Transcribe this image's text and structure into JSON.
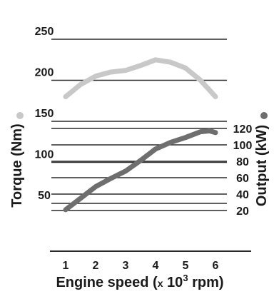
{
  "chart_data": {
    "type": "line",
    "xlabel_parts": {
      "prefix": "Engine speed (",
      "x": "x",
      "base": " 10",
      "exp": "3",
      "suffix": " rpm)"
    },
    "ylabel_left": "Torque (Nm)",
    "ylabel_right": "Output (kW)",
    "x_ticks": [
      1,
      2,
      3,
      4,
      5,
      6
    ],
    "y_left_ticks": [
      50,
      100,
      150,
      200,
      250
    ],
    "y_right_ticks": [
      20,
      40,
      60,
      80,
      100,
      120
    ],
    "xlim": [
      0.5,
      6.5
    ],
    "y_left_lim": [
      20,
      285
    ],
    "y_right_lim": [
      10,
      125
    ],
    "grid": true,
    "series": [
      {
        "name": "Torque (Nm)",
        "axis": "left",
        "color": "#c8c8c8",
        "x": [
          1,
          1.5,
          2,
          2.5,
          3,
          3.5,
          4,
          4.5,
          5,
          5.5,
          6
        ],
        "y": [
          180,
          195,
          205,
          210,
          212,
          218,
          225,
          222,
          215,
          200,
          180
        ]
      },
      {
        "name": "Output (kW)",
        "axis": "right",
        "color": "#6e6e6e",
        "x": [
          1,
          1.5,
          2,
          2.5,
          3,
          3.5,
          4,
          4.5,
          5,
          5.5,
          5.8,
          6
        ],
        "y": [
          21,
          35,
          49,
          59,
          68,
          81,
          95,
          103,
          109,
          116,
          117,
          115
        ]
      }
    ]
  },
  "legend_markers": [
    {
      "name": "torque-marker",
      "color": "#c8c8c8"
    },
    {
      "name": "output-marker",
      "color": "#6e6e6e"
    }
  ]
}
